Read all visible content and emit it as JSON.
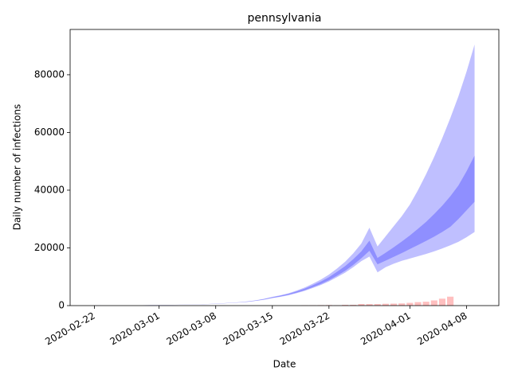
{
  "chart_data": {
    "type": "band",
    "title": "pennsylvania",
    "x_label": "Date",
    "y_label": "Daily number of infections",
    "x": [
      "2020-02-22",
      "2020-02-23",
      "2020-02-24",
      "2020-02-25",
      "2020-02-26",
      "2020-02-27",
      "2020-02-28",
      "2020-02-29",
      "2020-03-01",
      "2020-03-02",
      "2020-03-03",
      "2020-03-04",
      "2020-03-05",
      "2020-03-06",
      "2020-03-07",
      "2020-03-08",
      "2020-03-09",
      "2020-03-10",
      "2020-03-11",
      "2020-03-12",
      "2020-03-13",
      "2020-03-14",
      "2020-03-15",
      "2020-03-16",
      "2020-03-17",
      "2020-03-18",
      "2020-03-19",
      "2020-03-20",
      "2020-03-21",
      "2020-03-22",
      "2020-03-23",
      "2020-03-24",
      "2020-03-25",
      "2020-03-26",
      "2020-03-27",
      "2020-03-28",
      "2020-03-29",
      "2020-03-30",
      "2020-03-31",
      "2020-04-01",
      "2020-04-02",
      "2020-04-03",
      "2020-04-04",
      "2020-04-05",
      "2020-04-06",
      "2020-04-07",
      "2020-04-08",
      "2020-04-09"
    ],
    "bands": [
      {
        "color": "#0000ff",
        "alpha": 0.25,
        "lower": [
          47,
          57,
          66,
          76,
          90,
          104,
          123,
          152,
          180,
          218,
          256,
          304,
          361,
          427,
          503,
          589,
          760,
          900,
          1090,
          1320,
          1640,
          2050,
          2600,
          3050,
          3590,
          4310,
          5110,
          6090,
          7150,
          8380,
          9850,
          11400,
          13300,
          15400,
          17000,
          11500,
          13300,
          14500,
          15500,
          16300,
          17100,
          17900,
          18800,
          19800,
          20900,
          22100,
          23700,
          25500
        ],
        "upper": [
          53,
          63,
          74,
          84,
          100,
          116,
          137,
          168,
          200,
          242,
          284,
          336,
          399,
          473,
          557,
          651,
          840,
          1000,
          1215,
          1485,
          1870,
          2370,
          3030,
          3600,
          4290,
          5210,
          6270,
          7570,
          9030,
          10750,
          12870,
          15200,
          18100,
          21500,
          27000,
          20500,
          24000,
          27500,
          31000,
          35000,
          40000,
          45500,
          51500,
          58000,
          65000,
          72500,
          81000,
          90500
        ]
      },
      {
        "color": "#0000ff",
        "alpha": 0.25,
        "lower": [
          48,
          58,
          68,
          78,
          92,
          107,
          126,
          155,
          184,
          223,
          262,
          310,
          369,
          436,
          514,
          601,
          776,
          920,
          1115,
          1355,
          1690,
          2120,
          2700,
          3170,
          3740,
          4490,
          5340,
          6370,
          7490,
          8800,
          10380,
          12050,
          14090,
          16400,
          19000,
          14300,
          15600,
          16900,
          18200,
          19600,
          21000,
          22400,
          23900,
          25500,
          27300,
          30000,
          33000,
          36000
        ],
        "upper": [
          52,
          62,
          72,
          82,
          98,
          113,
          134,
          165,
          196,
          237,
          278,
          330,
          391,
          464,
          546,
          639,
          824,
          980,
          1185,
          1445,
          1810,
          2280,
          2900,
          3430,
          4070,
          4920,
          5880,
          7060,
          8360,
          9870,
          11710,
          13680,
          16080,
          18800,
          22500,
          16500,
          18300,
          20200,
          22200,
          24300,
          26600,
          29000,
          31700,
          34600,
          37900,
          41600,
          46500,
          52000
        ]
      }
    ],
    "bars": {
      "color": "#ff0000",
      "alpha": 0.25,
      "x": [
        "2020-03-19",
        "2020-03-20",
        "2020-03-21",
        "2020-03-22",
        "2020-03-23",
        "2020-03-24",
        "2020-03-25",
        "2020-03-26",
        "2020-03-27",
        "2020-03-28",
        "2020-03-29",
        "2020-03-30",
        "2020-03-31",
        "2020-04-01",
        "2020-04-02",
        "2020-04-03",
        "2020-04-04",
        "2020-04-05",
        "2020-04-06"
      ],
      "values": [
        90,
        130,
        160,
        190,
        110,
        270,
        280,
        560,
        530,
        530,
        640,
        690,
        760,
        960,
        1200,
        1350,
        1800,
        2400,
        3100
      ]
    },
    "xlim": [
      "2020-02-19",
      "2020-04-12"
    ],
    "xticks": [
      "2020-02-22",
      "2020-03-01",
      "2020-03-08",
      "2020-03-15",
      "2020-03-22",
      "2020-04-01",
      "2020-04-08"
    ],
    "ylim": [
      0,
      95700
    ],
    "yticks": [
      0,
      20000,
      40000,
      60000,
      80000
    ]
  }
}
